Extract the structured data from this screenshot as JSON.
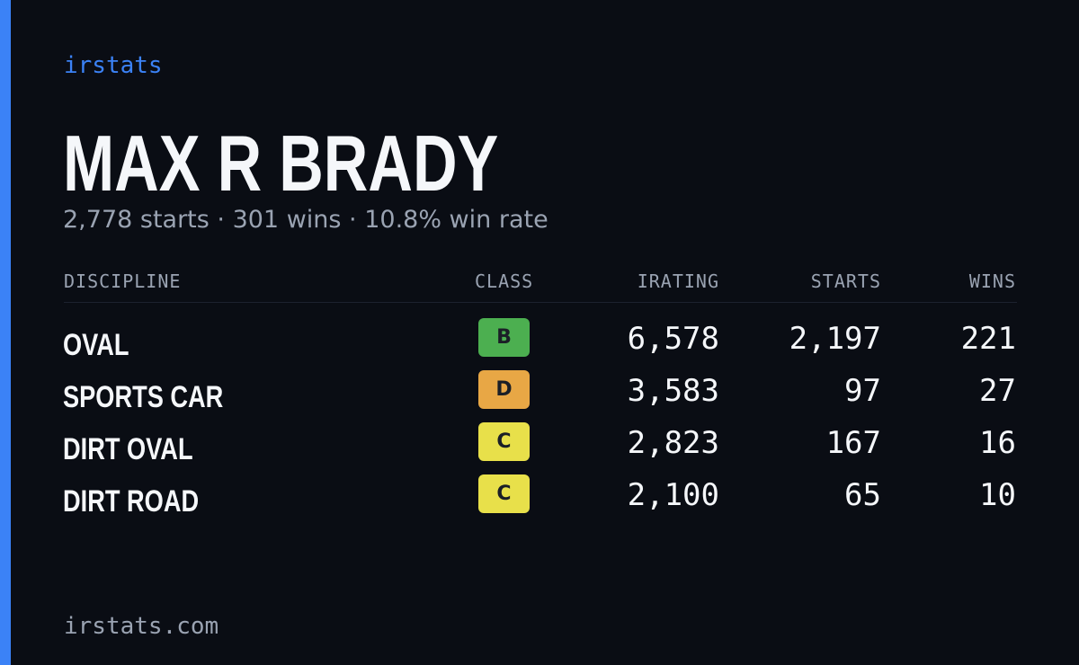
{
  "brand": "irstats",
  "player": {
    "name": "MAX R BRADY",
    "summary": "2,778 starts · 301 wins · 10.8% win rate"
  },
  "table": {
    "headers": {
      "discipline": "DISCIPLINE",
      "class": "CLASS",
      "irating": "IRATING",
      "starts": "STARTS",
      "wins": "WINS"
    },
    "rows": [
      {
        "discipline": "OVAL",
        "class": "B",
        "class_color": "#4caf50",
        "irating": "6,578",
        "starts": "2,197",
        "wins": "221"
      },
      {
        "discipline": "SPORTS CAR",
        "class": "D",
        "class_color": "#e8a745",
        "irating": "3,583",
        "starts": "97",
        "wins": "27"
      },
      {
        "discipline": "DIRT OVAL",
        "class": "C",
        "class_color": "#e8e04a",
        "irating": "2,823",
        "starts": "167",
        "wins": "16"
      },
      {
        "discipline": "DIRT ROAD",
        "class": "C",
        "class_color": "#e8e04a",
        "irating": "2,100",
        "starts": "65",
        "wins": "10"
      }
    ]
  },
  "footer": "irstats.com",
  "colors": {
    "accent": "#3b82f6",
    "background": "#0a0d14",
    "text_primary": "#f5f7fa",
    "text_secondary": "#9aa3b2"
  }
}
